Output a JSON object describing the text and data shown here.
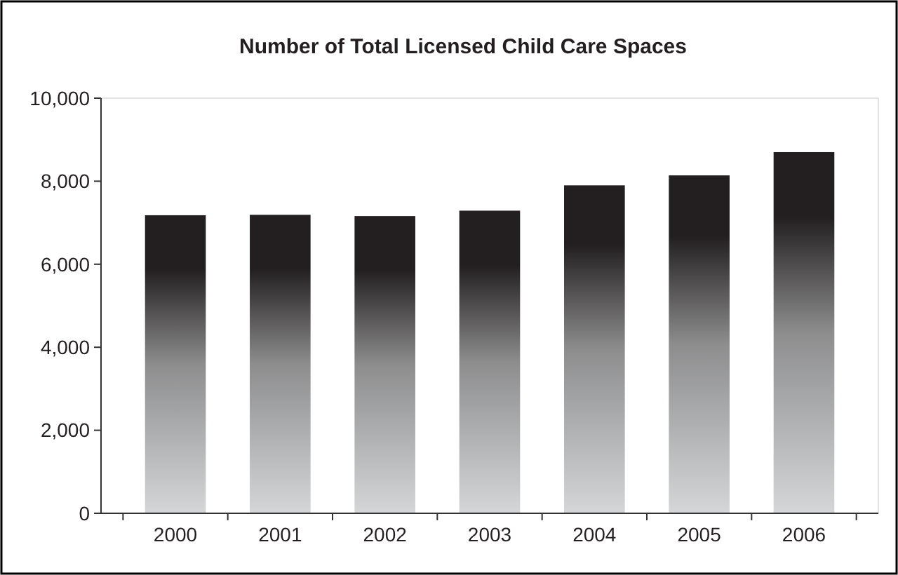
{
  "chart_data": {
    "type": "bar",
    "title": "Number of Total Licensed Child Care Spaces",
    "categories": [
      "2000",
      "2001",
      "2002",
      "2003",
      "2004",
      "2005",
      "2006"
    ],
    "values": [
      7180,
      7190,
      7160,
      7290,
      7900,
      8140,
      8700
    ],
    "color": "#231f20",
    "ylim": [
      0,
      10000
    ],
    "yticks": [
      {
        "value": 0,
        "label": "0"
      },
      {
        "value": 2000,
        "label": "2,000"
      },
      {
        "value": 4000,
        "label": "4,000"
      },
      {
        "value": 6000,
        "label": "6,000"
      },
      {
        "value": 8000,
        "label": "8,000"
      },
      {
        "value": 10000,
        "label": "10,000"
      }
    ],
    "grid": false
  }
}
